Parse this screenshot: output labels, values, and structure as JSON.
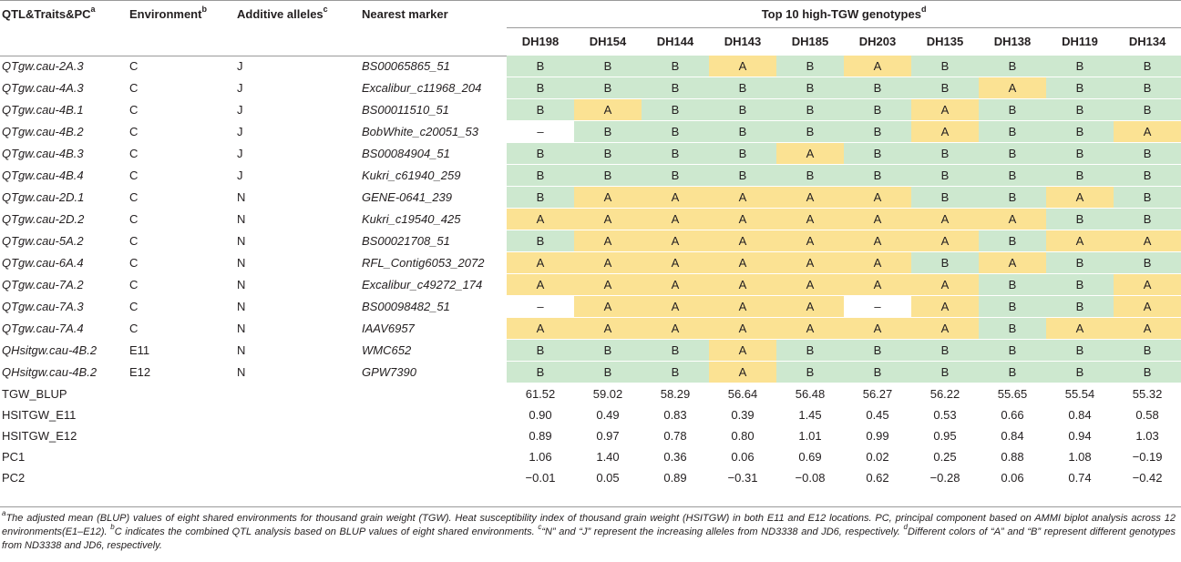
{
  "header": {
    "col_qtl": "QTL&Traits&PC",
    "col_qtl_sup": "a",
    "col_env": "Environment",
    "col_env_sup": "b",
    "col_add": "Additive alleles",
    "col_add_sup": "c",
    "col_marker": "Nearest marker",
    "col_top": "Top 10 high-TGW genotypes",
    "col_top_sup": "d",
    "genotypes": [
      "DH198",
      "DH154",
      "DH144",
      "DH143",
      "DH185",
      "DH203",
      "DH135",
      "DH138",
      "DH119",
      "DH134"
    ]
  },
  "qtl_rows": [
    {
      "name": "QTgw.cau-2A.3",
      "env": "C",
      "allele": "J",
      "marker": "BS00065865_51",
      "calls": [
        "B",
        "B",
        "B",
        "A",
        "B",
        "A",
        "B",
        "B",
        "B",
        "B"
      ]
    },
    {
      "name": "QTgw.cau-4A.3",
      "env": "C",
      "allele": "J",
      "marker": "Excalibur_c11968_204",
      "calls": [
        "B",
        "B",
        "B",
        "B",
        "B",
        "B",
        "B",
        "A",
        "B",
        "B"
      ]
    },
    {
      "name": "QTgw.cau-4B.1",
      "env": "C",
      "allele": "J",
      "marker": "BS00011510_51",
      "calls": [
        "B",
        "A",
        "B",
        "B",
        "B",
        "B",
        "A",
        "B",
        "B",
        "B"
      ]
    },
    {
      "name": "QTgw.cau-4B.2",
      "env": "C",
      "allele": "J",
      "marker": "BobWhite_c20051_53",
      "calls": [
        "–",
        "B",
        "B",
        "B",
        "B",
        "B",
        "A",
        "B",
        "B",
        "A"
      ]
    },
    {
      "name": "QTgw.cau-4B.3",
      "env": "C",
      "allele": "J",
      "marker": "BS00084904_51",
      "calls": [
        "B",
        "B",
        "B",
        "B",
        "A",
        "B",
        "B",
        "B",
        "B",
        "B"
      ]
    },
    {
      "name": "QTgw.cau-4B.4",
      "env": "C",
      "allele": "J",
      "marker": "Kukri_c61940_259",
      "calls": [
        "B",
        "B",
        "B",
        "B",
        "B",
        "B",
        "B",
        "B",
        "B",
        "B"
      ]
    },
    {
      "name": "QTgw.cau-2D.1",
      "env": "C",
      "allele": "N",
      "marker": "GENE-0641_239",
      "calls": [
        "B",
        "A",
        "A",
        "A",
        "A",
        "A",
        "B",
        "B",
        "A",
        "B"
      ]
    },
    {
      "name": "QTgw.cau-2D.2",
      "env": "C",
      "allele": "N",
      "marker": "Kukri_c19540_425",
      "calls": [
        "A",
        "A",
        "A",
        "A",
        "A",
        "A",
        "A",
        "A",
        "B",
        "B"
      ]
    },
    {
      "name": "QTgw.cau-5A.2",
      "env": "C",
      "allele": "N",
      "marker": "BS00021708_51",
      "calls": [
        "B",
        "A",
        "A",
        "A",
        "A",
        "A",
        "A",
        "B",
        "A",
        "A"
      ]
    },
    {
      "name": "QTgw.cau-6A.4",
      "env": "C",
      "allele": "N",
      "marker": "RFL_Contig6053_2072",
      "calls": [
        "A",
        "A",
        "A",
        "A",
        "A",
        "A",
        "B",
        "A",
        "B",
        "B"
      ]
    },
    {
      "name": "QTgw.cau-7A.2",
      "env": "C",
      "allele": "N",
      "marker": "Excalibur_c49272_174",
      "calls": [
        "A",
        "A",
        "A",
        "A",
        "A",
        "A",
        "A",
        "B",
        "B",
        "A"
      ]
    },
    {
      "name": "QTgw.cau-7A.3",
      "env": "C",
      "allele": "N",
      "marker": "BS00098482_51",
      "calls": [
        "–",
        "A",
        "A",
        "A",
        "A",
        "–",
        "A",
        "B",
        "B",
        "A"
      ]
    },
    {
      "name": "QTgw.cau-7A.4",
      "env": "C",
      "allele": "N",
      "marker": "IAAV6957",
      "calls": [
        "A",
        "A",
        "A",
        "A",
        "A",
        "A",
        "A",
        "B",
        "A",
        "A"
      ]
    },
    {
      "name": "QHsitgw.cau-4B.2",
      "env": "E11",
      "allele": "N",
      "marker": "WMC652",
      "calls": [
        "B",
        "B",
        "B",
        "A",
        "B",
        "B",
        "B",
        "B",
        "B",
        "B"
      ]
    },
    {
      "name": "QHsitgw.cau-4B.2",
      "env": "E12",
      "allele": "N",
      "marker": "GPW7390",
      "calls": [
        "B",
        "B",
        "B",
        "A",
        "B",
        "B",
        "B",
        "B",
        "B",
        "B"
      ]
    }
  ],
  "trait_rows": [
    {
      "name": "TGW_BLUP",
      "values": [
        "61.52",
        "59.02",
        "58.29",
        "56.64",
        "56.48",
        "56.27",
        "56.22",
        "55.65",
        "55.54",
        "55.32"
      ]
    },
    {
      "name": "HSITGW_E11",
      "values": [
        "0.90",
        "0.49",
        "0.83",
        "0.39",
        "1.45",
        "0.45",
        "0.53",
        "0.66",
        "0.84",
        "0.58"
      ]
    },
    {
      "name": "HSITGW_E12",
      "values": [
        "0.89",
        "0.97",
        "0.78",
        "0.80",
        "1.01",
        "0.99",
        "0.95",
        "0.84",
        "0.94",
        "1.03"
      ]
    },
    {
      "name": "PC1",
      "values": [
        "1.06",
        "1.40",
        "0.36",
        "0.06",
        "0.69",
        "0.02",
        "0.25",
        "0.88",
        "1.08",
        "−0.19"
      ]
    },
    {
      "name": "PC2",
      "values": [
        "−0.01",
        "0.05",
        "0.89",
        "−0.31",
        "−0.08",
        "0.62",
        "−0.28",
        "0.06",
        "0.74",
        "−0.42"
      ]
    }
  ],
  "footnote": {
    "a_mark": "a",
    "a_text": "The adjusted mean (BLUP) values of eight shared environments for thousand grain weight (TGW). Heat susceptibility index of thousand grain weight (HSITGW) in both E11 and E12 locations. PC, principal component based on AMMI biplot analysis across 12 environments(E1–E12). ",
    "b_mark": "b",
    "b_text": "C indicates the combined QTL analysis based on BLUP values of eight shared environments. ",
    "c_mark": "c",
    "c_text": "“N” and “J” represent the increasing alleles from ND3338 and JD6, respectively. ",
    "d_mark": "d",
    "d_text": "Different colors of “A” and “B” represent different genotypes from ND3338 and JD6, respectively."
  },
  "colors": {
    "allele_A": "#fbe293",
    "allele_B": "#cde8cf",
    "missing": "#ffffff",
    "rule": "#9a9a9a"
  }
}
